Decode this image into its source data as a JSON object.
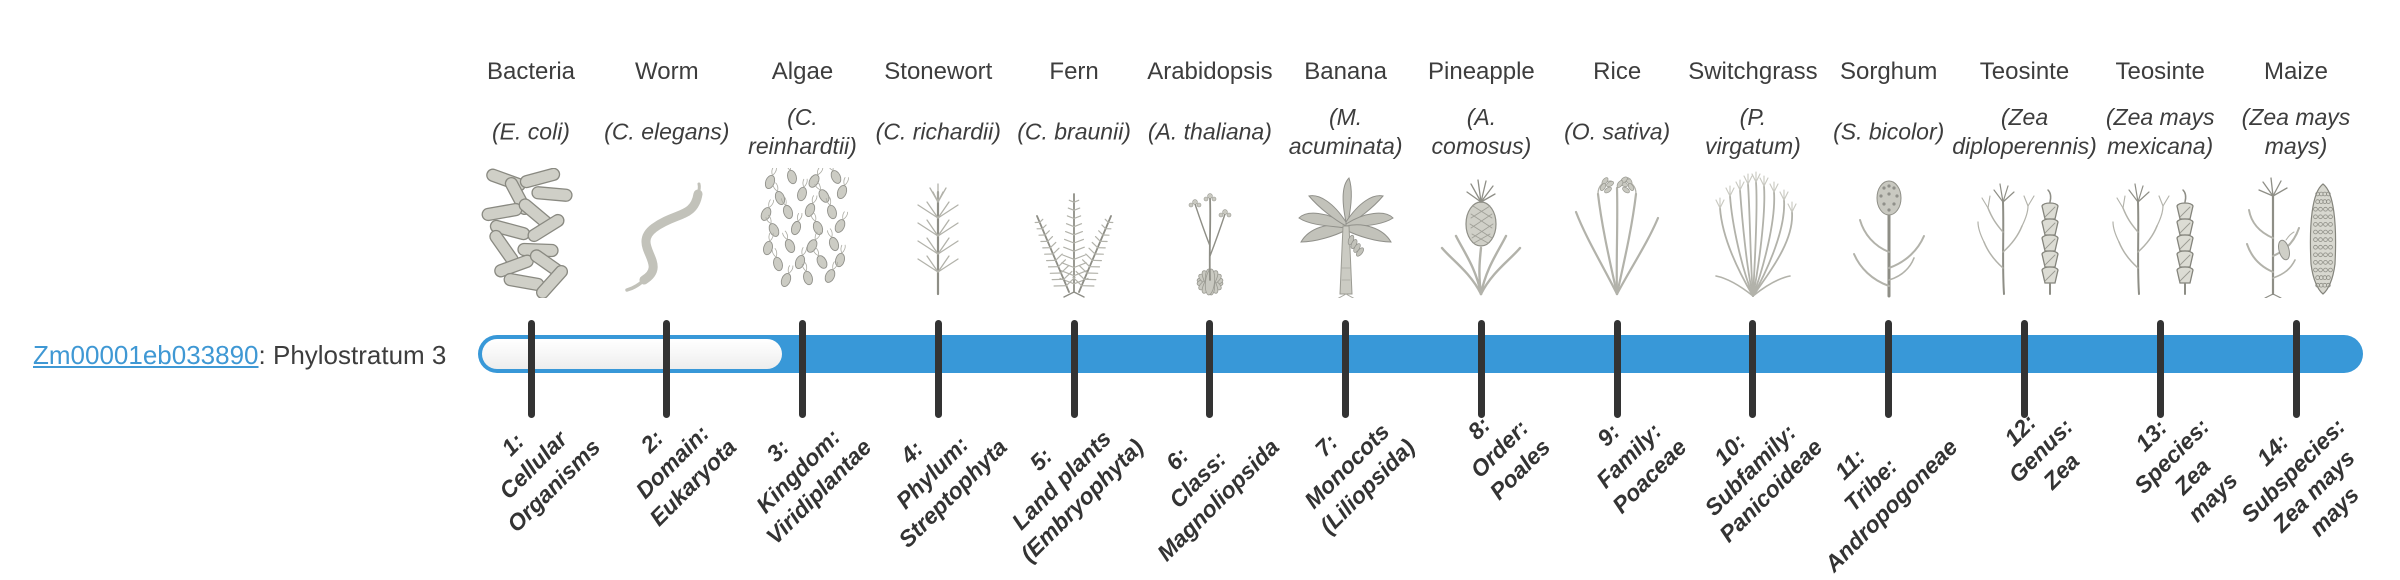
{
  "gene": {
    "id": "Zm00001eb033890",
    "suffix": ": Phylostratum 3",
    "phylostratum": 3
  },
  "visual": {
    "bar_blue": "#3898d8",
    "tick_color": "#333333",
    "link_color": "#3f98d4",
    "text_color": "#3d3d3d",
    "label_color": "#333333",
    "illustration_gray": "#b2b2aa"
  },
  "timeline": {
    "total_strata": 14,
    "unfilled_strata_note": "track unfilled before stratum 3, filled blue from stratum 3 to 14"
  },
  "columns": [
    {
      "name": "Bacteria",
      "species_lines": [
        "(E. coli)"
      ],
      "icon": "bacteria-icon",
      "stratum_lines": [
        "1:",
        "Cellular",
        "Organisms"
      ]
    },
    {
      "name": "Worm",
      "species_lines": [
        "(C. elegans)"
      ],
      "icon": "worm-icon",
      "stratum_lines": [
        "2:",
        "Domain:",
        "Eukaryota"
      ]
    },
    {
      "name": "Algae",
      "species_lines": [
        "(C.",
        "reinhardtii)"
      ],
      "icon": "algae-icon",
      "stratum_lines": [
        "3:",
        "Kingdom:",
        "Viridiplantae"
      ]
    },
    {
      "name": "Stonewort",
      "species_lines": [
        "(C. richardii)"
      ],
      "icon": "stonewort-icon",
      "stratum_lines": [
        "4:",
        "Phylum:",
        "Streptophyta"
      ]
    },
    {
      "name": "Fern",
      "species_lines": [
        "(C. braunii)"
      ],
      "icon": "fern-icon",
      "stratum_lines": [
        "5:",
        "Land plants",
        "(Embryophyta)"
      ]
    },
    {
      "name": "Arabidopsis",
      "species_lines": [
        "(A. thaliana)"
      ],
      "icon": "arabidopsis-icon",
      "stratum_lines": [
        "6:",
        "Class:",
        "Magnoliopsida"
      ]
    },
    {
      "name": "Banana",
      "species_lines": [
        "(M.",
        "acuminata)"
      ],
      "icon": "banana-icon",
      "stratum_lines": [
        "7:",
        "Monocots",
        "(Liliopsida)"
      ]
    },
    {
      "name": "Pineapple",
      "species_lines": [
        "(A.",
        "comosus)"
      ],
      "icon": "pineapple-icon",
      "stratum_lines": [
        "8:",
        "Order:",
        "Poales"
      ]
    },
    {
      "name": "Rice",
      "species_lines": [
        "(O. sativa)"
      ],
      "icon": "rice-icon",
      "stratum_lines": [
        "9:",
        "Family:",
        "Poaceae"
      ]
    },
    {
      "name": "Switchgrass",
      "species_lines": [
        "(P.",
        "virgatum)"
      ],
      "icon": "switchgrass-icon",
      "stratum_lines": [
        "10:",
        "Subfamily:",
        "Panicoideae"
      ]
    },
    {
      "name": "Sorghum",
      "species_lines": [
        "(S. bicolor)"
      ],
      "icon": "sorghum-icon",
      "stratum_lines": [
        "11:",
        "Tribe:",
        "Andropogoneae"
      ]
    },
    {
      "name": "Teosinte",
      "species_lines": [
        "(Zea",
        "diploperennis)"
      ],
      "icon": "teosinte-icon",
      "stratum_lines": [
        "12:",
        "Genus:",
        "Zea"
      ]
    },
    {
      "name": "Teosinte",
      "species_lines": [
        "(Zea mays",
        "mexicana)"
      ],
      "icon": "teosinte-icon",
      "stratum_lines": [
        "13:",
        "Species:",
        "Zea",
        "mays"
      ]
    },
    {
      "name": "Maize",
      "species_lines": [
        "(Zea mays",
        "mays)"
      ],
      "icon": "maize-icon",
      "stratum_lines": [
        "14:",
        "Subspecies:",
        "Zea mays",
        "mays"
      ]
    }
  ]
}
